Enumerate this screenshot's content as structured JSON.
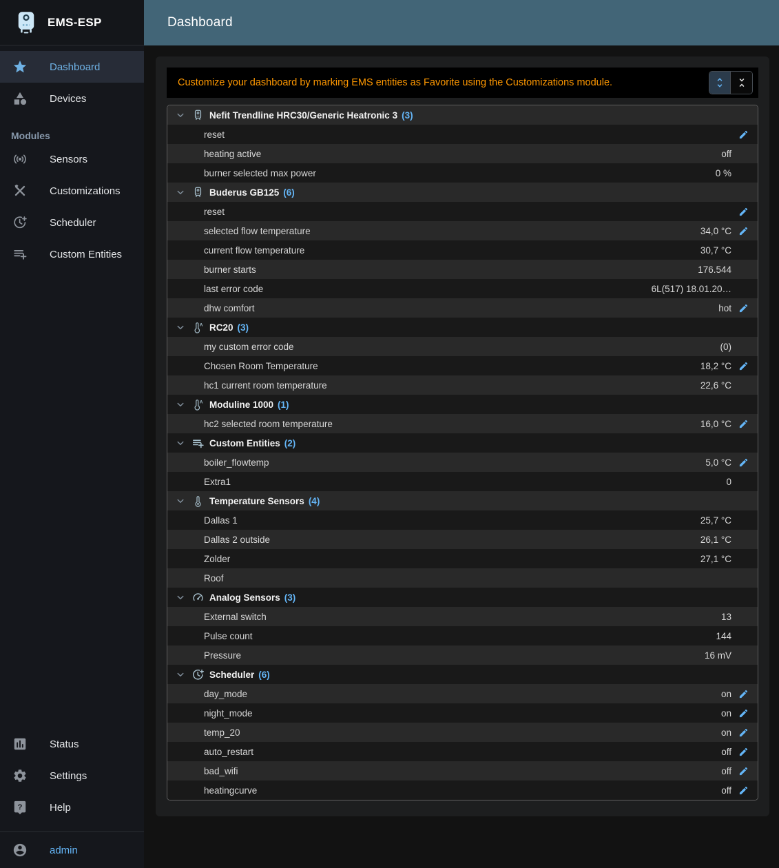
{
  "sidebar": {
    "app_name": "EMS-ESP",
    "modules_header": "Modules",
    "items": [
      {
        "label": "Dashboard",
        "icon": "star",
        "selected": true
      },
      {
        "label": "Devices",
        "icon": "category",
        "selected": false
      }
    ],
    "module_items": [
      {
        "label": "Sensors",
        "icon": "sensors"
      },
      {
        "label": "Customizations",
        "icon": "construction"
      },
      {
        "label": "Scheduler",
        "icon": "more-time"
      },
      {
        "label": "Custom Entities",
        "icon": "playlist-add"
      }
    ],
    "bottom_items": [
      {
        "label": "Status",
        "icon": "assessment"
      },
      {
        "label": "Settings",
        "icon": "settings"
      },
      {
        "label": "Help",
        "icon": "live-help"
      }
    ],
    "user": {
      "label": "admin",
      "icon": "account-circle"
    }
  },
  "header": {
    "title": "Dashboard"
  },
  "notice": {
    "text": "Customize your dashboard by marking EMS entities as Favorite using the Customizations module.",
    "buttons": [
      {
        "name": "expand-all",
        "icon": "unfold-more",
        "active": true
      },
      {
        "name": "collapse-all",
        "icon": "unfold-less",
        "active": false
      }
    ]
  },
  "dashboard": {
    "groups": [
      {
        "name": "Nefit Trendline HRC30/Generic Heatronic 3",
        "count": "(3)",
        "icon": "water-heater",
        "rows": [
          {
            "label": "reset",
            "value": "",
            "editable": true
          },
          {
            "label": "heating active",
            "value": "off"
          },
          {
            "label": "burner selected max power",
            "value": "0 %"
          }
        ]
      },
      {
        "name": "Buderus GB125",
        "count": "(6)",
        "icon": "water-heater",
        "rows": [
          {
            "label": "reset",
            "value": "",
            "editable": true
          },
          {
            "label": "selected flow temperature",
            "value": "34,0 °C",
            "editable": true
          },
          {
            "label": "current flow temperature",
            "value": "30,7 °C"
          },
          {
            "label": "burner starts",
            "value": "176.544"
          },
          {
            "label": "last error code",
            "value": "6L(517) 18.01.20…"
          },
          {
            "label": "dhw comfort",
            "value": "hot",
            "editable": true
          }
        ]
      },
      {
        "name": "RC20",
        "count": "(3)",
        "icon": "thermostat",
        "rows": [
          {
            "label": "my custom error code",
            "value": "(0)"
          },
          {
            "label": "Chosen Room Temperature",
            "value": "18,2 °C",
            "editable": true
          },
          {
            "label": "hc1 current room temperature",
            "value": "22,6 °C"
          }
        ]
      },
      {
        "name": "Moduline 1000",
        "count": "(1)",
        "icon": "thermostat",
        "rows": [
          {
            "label": "hc2 selected room temperature",
            "value": "16,0 °C",
            "editable": true
          }
        ]
      },
      {
        "name": "Custom Entities",
        "count": "(2)",
        "icon": "playlist-add",
        "rows": [
          {
            "label": "boiler_flowtemp",
            "value": "5,0 °C",
            "editable": true
          },
          {
            "label": "Extra1",
            "value": "0"
          }
        ]
      },
      {
        "name": "Temperature Sensors",
        "count": "(4)",
        "icon": "thermometer",
        "rows": [
          {
            "label": "Dallas 1",
            "value": "25,7 °C"
          },
          {
            "label": "Dallas 2 outside",
            "value": "26,1 °C"
          },
          {
            "label": "Zolder",
            "value": "27,1 °C"
          },
          {
            "label": "Roof",
            "value": ""
          }
        ]
      },
      {
        "name": "Analog Sensors",
        "count": "(3)",
        "icon": "gauge",
        "rows": [
          {
            "label": "External switch",
            "value": "13"
          },
          {
            "label": "Pulse count",
            "value": "144"
          },
          {
            "label": "Pressure",
            "value": "16 mV"
          }
        ]
      },
      {
        "name": "Scheduler",
        "count": "(6)",
        "icon": "more-time",
        "rows": [
          {
            "label": "day_mode",
            "value": "on",
            "editable": true
          },
          {
            "label": "night_mode",
            "value": "on",
            "editable": true
          },
          {
            "label": "temp_20",
            "value": "on",
            "editable": true
          },
          {
            "label": "auto_restart",
            "value": "off",
            "editable": true
          },
          {
            "label": "bad_wifi",
            "value": "off",
            "editable": true
          },
          {
            "label": "heatingcurve",
            "value": "off",
            "editable": true
          }
        ]
      }
    ]
  },
  "colors": {
    "accent_blue": "#64b5f6",
    "notice_orange": "#ff9800",
    "appbar_teal": "#426577",
    "row_light": "#292929",
    "row_dark": "#191919"
  }
}
